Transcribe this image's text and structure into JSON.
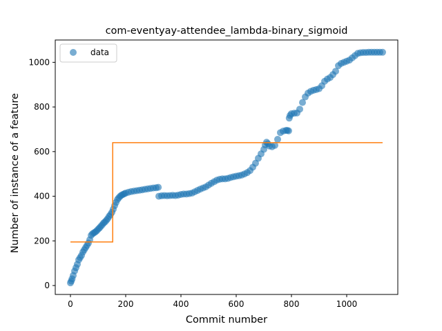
{
  "chart_data": {
    "type": "scatter",
    "title": "com-eventyay-attendee_lambda-binary_sigmoid",
    "xlabel": "Commit number",
    "ylabel": "Number of instance of a feature",
    "xlim": [
      -55,
      1185
    ],
    "ylim": [
      -40,
      1100
    ],
    "xticks": [
      0,
      200,
      400,
      600,
      800,
      1000
    ],
    "yticks": [
      0,
      200,
      400,
      600,
      800,
      1000
    ],
    "legend": {
      "position": "top-left",
      "entries": [
        "data"
      ]
    },
    "grid": false,
    "colors": {
      "data": "#1f77b4",
      "fit": "#ff7f0e"
    },
    "series": [
      {
        "name": "data",
        "type": "scatter",
        "points": [
          [
            0,
            12
          ],
          [
            3,
            20
          ],
          [
            6,
            30
          ],
          [
            10,
            45
          ],
          [
            15,
            65
          ],
          [
            20,
            80
          ],
          [
            25,
            95
          ],
          [
            30,
            115
          ],
          [
            35,
            125
          ],
          [
            40,
            135
          ],
          [
            45,
            150
          ],
          [
            50,
            160
          ],
          [
            55,
            170
          ],
          [
            60,
            180
          ],
          [
            65,
            190
          ],
          [
            70,
            205
          ],
          [
            75,
            225
          ],
          [
            80,
            232
          ],
          [
            85,
            236
          ],
          [
            90,
            240
          ],
          [
            95,
            245
          ],
          [
            100,
            252
          ],
          [
            105,
            258
          ],
          [
            110,
            265
          ],
          [
            115,
            272
          ],
          [
            120,
            280
          ],
          [
            125,
            285
          ],
          [
            130,
            292
          ],
          [
            135,
            300
          ],
          [
            140,
            310
          ],
          [
            145,
            318
          ],
          [
            150,
            328
          ],
          [
            155,
            342
          ],
          [
            160,
            358
          ],
          [
            165,
            372
          ],
          [
            170,
            385
          ],
          [
            175,
            393
          ],
          [
            180,
            400
          ],
          [
            185,
            405
          ],
          [
            190,
            408
          ],
          [
            195,
            411
          ],
          [
            200,
            414
          ],
          [
            210,
            418
          ],
          [
            220,
            421
          ],
          [
            230,
            423
          ],
          [
            240,
            425
          ],
          [
            250,
            427
          ],
          [
            260,
            429
          ],
          [
            270,
            431
          ],
          [
            280,
            433
          ],
          [
            290,
            435
          ],
          [
            300,
            437
          ],
          [
            310,
            438
          ],
          [
            318,
            440
          ],
          [
            320,
            400
          ],
          [
            330,
            402
          ],
          [
            340,
            403
          ],
          [
            350,
            402
          ],
          [
            360,
            403
          ],
          [
            370,
            404
          ],
          [
            380,
            403
          ],
          [
            390,
            405
          ],
          [
            400,
            408
          ],
          [
            410,
            410
          ],
          [
            420,
            410
          ],
          [
            430,
            412
          ],
          [
            440,
            414
          ],
          [
            450,
            420
          ],
          [
            460,
            426
          ],
          [
            470,
            432
          ],
          [
            480,
            437
          ],
          [
            490,
            442
          ],
          [
            500,
            450
          ],
          [
            510,
            458
          ],
          [
            520,
            465
          ],
          [
            530,
            472
          ],
          [
            540,
            476
          ],
          [
            550,
            478
          ],
          [
            560,
            478
          ],
          [
            570,
            480
          ],
          [
            580,
            484
          ],
          [
            590,
            487
          ],
          [
            600,
            490
          ],
          [
            610,
            492
          ],
          [
            620,
            495
          ],
          [
            630,
            500
          ],
          [
            640,
            506
          ],
          [
            650,
            515
          ],
          [
            660,
            530
          ],
          [
            670,
            548
          ],
          [
            680,
            570
          ],
          [
            690,
            590
          ],
          [
            700,
            610
          ],
          [
            705,
            630
          ],
          [
            710,
            642
          ],
          [
            715,
            635
          ],
          [
            720,
            625
          ],
          [
            730,
            622
          ],
          [
            740,
            628
          ],
          [
            750,
            655
          ],
          [
            760,
            685
          ],
          [
            770,
            692
          ],
          [
            780,
            695
          ],
          [
            785,
            695
          ],
          [
            790,
            693
          ],
          [
            792,
            750
          ],
          [
            795,
            762
          ],
          [
            800,
            770
          ],
          [
            810,
            772
          ],
          [
            820,
            773
          ],
          [
            830,
            790
          ],
          [
            840,
            820
          ],
          [
            850,
            845
          ],
          [
            860,
            862
          ],
          [
            870,
            870
          ],
          [
            880,
            875
          ],
          [
            890,
            878
          ],
          [
            900,
            882
          ],
          [
            910,
            895
          ],
          [
            920,
            915
          ],
          [
            930,
            925
          ],
          [
            940,
            932
          ],
          [
            950,
            945
          ],
          [
            960,
            960
          ],
          [
            970,
            985
          ],
          [
            980,
            995
          ],
          [
            990,
            1000
          ],
          [
            1000,
            1005
          ],
          [
            1010,
            1010
          ],
          [
            1020,
            1020
          ],
          [
            1030,
            1030
          ],
          [
            1040,
            1040
          ],
          [
            1050,
            1043
          ],
          [
            1060,
            1044
          ],
          [
            1070,
            1044
          ],
          [
            1080,
            1045
          ],
          [
            1090,
            1045
          ],
          [
            1100,
            1045
          ],
          [
            1110,
            1045
          ],
          [
            1120,
            1045
          ],
          [
            1130,
            1045
          ]
        ]
      },
      {
        "name": "",
        "type": "step-line",
        "points": [
          [
            0,
            195
          ],
          [
            153,
            195
          ],
          [
            153,
            640
          ],
          [
            1130,
            640
          ]
        ]
      }
    ]
  }
}
